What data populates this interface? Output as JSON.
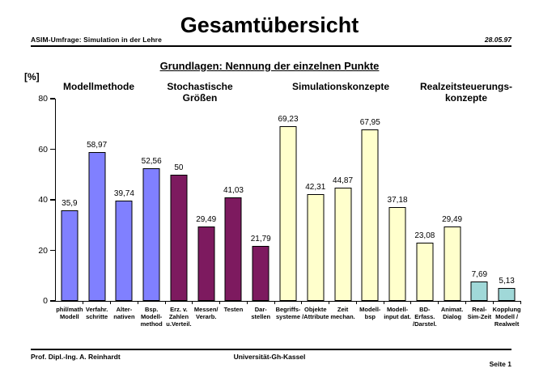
{
  "header": {
    "left": "ASIM-Umfrage: Simulation in der Lehre",
    "title": "Gesamtübersicht",
    "date": "28.05.97"
  },
  "chart_data": {
    "type": "bar",
    "title": "Grundlagen: Nennung der einzelnen Punkte",
    "ylabel": "[%]",
    "xlabel": "",
    "ylim": [
      0,
      80
    ],
    "yticks": [
      0,
      20,
      40,
      60,
      80
    ],
    "grid": false,
    "legend": false,
    "group_headers": [
      {
        "lines": [
          "Modellmethode"
        ],
        "color": "#8080FF"
      },
      {
        "lines": [
          "Stochastische",
          "Größen"
        ],
        "color": "#7D1A5F"
      },
      {
        "lines": [
          "Simulationskonzepte"
        ],
        "color": "#FFFFCC"
      },
      {
        "lines": [
          "Realzeitsteuerungs-",
          "konzepte"
        ],
        "color": "#A0D8D8"
      }
    ],
    "bars": [
      {
        "category_lines": [
          "phil/math",
          "Modell"
        ],
        "value": 35.9,
        "value_label": "35,9",
        "group": 0
      },
      {
        "category_lines": [
          "Verfahr.",
          "schritte"
        ],
        "value": 58.97,
        "value_label": "58,97",
        "group": 0
      },
      {
        "category_lines": [
          "Alter-",
          "nativen"
        ],
        "value": 39.74,
        "value_label": "39,74",
        "group": 0
      },
      {
        "category_lines": [
          "Bsp.",
          "Modell-",
          "method"
        ],
        "value": 52.56,
        "value_label": "52,56",
        "group": 0
      },
      {
        "category_lines": [
          "Erz. v.",
          "Zahlen",
          "u.Verteil."
        ],
        "value": 50,
        "value_label": "50",
        "group": 1
      },
      {
        "category_lines": [
          "Messen/",
          "Verarb."
        ],
        "value": 29.49,
        "value_label": "29,49",
        "group": 1
      },
      {
        "category_lines": [
          "Testen"
        ],
        "value": 41.03,
        "value_label": "41,03",
        "group": 1
      },
      {
        "category_lines": [
          "Dar-",
          "stellen"
        ],
        "value": 21.79,
        "value_label": "21,79",
        "group": 1
      },
      {
        "category_lines": [
          "Begriffs-",
          "systeme"
        ],
        "value": 69.23,
        "value_label": "69,23",
        "group": 2
      },
      {
        "category_lines": [
          "Objekte",
          "/Attribute"
        ],
        "value": 42.31,
        "value_label": "42,31",
        "group": 2
      },
      {
        "category_lines": [
          "Zeit",
          "mechan."
        ],
        "value": 44.87,
        "value_label": "44,87",
        "group": 2
      },
      {
        "category_lines": [
          "Modell-",
          "bsp"
        ],
        "value": 67.95,
        "value_label": "67,95",
        "group": 2
      },
      {
        "category_lines": [
          "Modell-",
          "input dat."
        ],
        "value": 37.18,
        "value_label": "37,18",
        "group": 2
      },
      {
        "category_lines": [
          "BD-",
          "Erfass.",
          "/Darstel."
        ],
        "value": 23.08,
        "value_label": "23,08",
        "group": 2
      },
      {
        "category_lines": [
          "Animat.",
          "Dialog"
        ],
        "value": 29.49,
        "value_label": "29,49",
        "group": 2
      },
      {
        "category_lines": [
          "Real-",
          "Sim-Zeit"
        ],
        "value": 7.69,
        "value_label": "7,69",
        "group": 3
      },
      {
        "category_lines": [
          "Kopplung",
          "Modell /",
          "Realwelt"
        ],
        "value": 5.13,
        "value_label": "5,13",
        "group": 3
      }
    ]
  },
  "footer": {
    "author": "Prof. Dipl.-Ing. A. Reinhardt",
    "institution": "Universität-Gh-Kassel",
    "page": "Seite 1"
  }
}
